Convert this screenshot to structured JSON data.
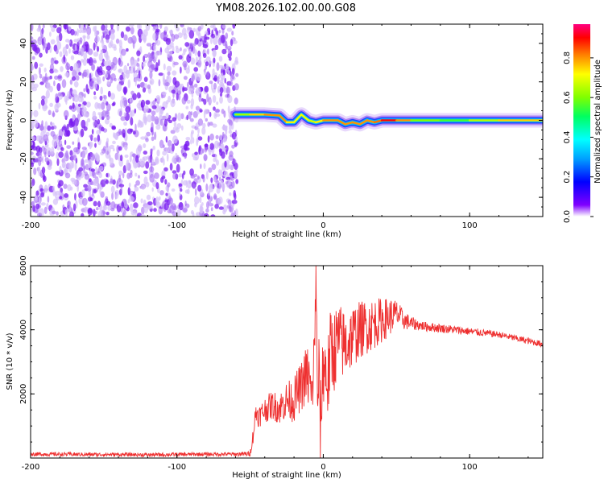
{
  "title": "YM08.2026.102.00.00.G08",
  "chart_data": [
    {
      "type": "heatmap",
      "title": "YM08.2026.102.00.00.G08",
      "xlabel": "Height of straight line (km)",
      "ylabel": "Frequency (Hz)",
      "xlim": [
        -200,
        150
      ],
      "ylim": [
        -50,
        50
      ],
      "x_ticks": [
        "-200",
        "-100",
        "0",
        "100"
      ],
      "y_ticks": [
        "40",
        "20",
        "0",
        "-20",
        "-40"
      ],
      "colorbar": {
        "label": "Normalized spectral amplitude",
        "range": [
          0,
          0.97
        ],
        "ticks": [
          "0.0",
          "0.2",
          "0.4",
          "0.6",
          "0.8"
        ]
      },
      "noise_region": {
        "x_from": -200,
        "x_to": -60
      },
      "ridge": {
        "x": [
          -60,
          -50,
          -40,
          -30,
          -25,
          -20,
          -15,
          -10,
          -5,
          0,
          10,
          15,
          20,
          25,
          30,
          35,
          40,
          50,
          60,
          80,
          100,
          120,
          150
        ],
        "frequency": [
          3,
          3,
          3,
          2.5,
          -1,
          -1,
          3,
          0,
          -1,
          0,
          0,
          -2,
          -1,
          -2,
          0,
          -1,
          0,
          0,
          0,
          0,
          0,
          0,
          0
        ],
        "amplitude": [
          0.55,
          0.75,
          0.8,
          0.85,
          0.8,
          0.7,
          0.75,
          0.7,
          0.7,
          0.8,
          0.85,
          0.8,
          0.85,
          0.8,
          0.85,
          0.8,
          0.9,
          0.95,
          0.7,
          0.55,
          0.6,
          0.75,
          0.8
        ]
      }
    },
    {
      "type": "line",
      "xlabel": "Height of straight line (km)",
      "ylabel": "SNR (10 * v/v)",
      "xlim": [
        -200,
        150
      ],
      "ylim": [
        0,
        6000
      ],
      "x_ticks": [
        "-200",
        "-100",
        "0",
        "100"
      ],
      "y_ticks": [
        "6000",
        "4000",
        "2000"
      ],
      "series": [
        {
          "color": "#ee3030",
          "x": [
            -200,
            -180,
            -160,
            -140,
            -120,
            -100,
            -80,
            -60,
            -50,
            -48,
            -46,
            -44,
            -40,
            -35,
            -30,
            -25,
            -20,
            -18,
            -15,
            -12,
            -10,
            -8,
            -6,
            -5,
            -4,
            -3,
            -2,
            0,
            3,
            5,
            8,
            10,
            15,
            20,
            25,
            30,
            35,
            40,
            45,
            50,
            55,
            60,
            65,
            70,
            80,
            90,
            100,
            110,
            120,
            130,
            140,
            150
          ],
          "y": [
            120,
            120,
            110,
            110,
            100,
            110,
            120,
            120,
            130,
            700,
            1450,
            1300,
            1500,
            1650,
            1550,
            1800,
            1800,
            2050,
            2200,
            2600,
            2500,
            1800,
            3300,
            6000,
            1400,
            2800,
            900,
            3000,
            2400,
            3300,
            3400,
            3700,
            3500,
            3800,
            4000,
            4100,
            4200,
            4300,
            4400,
            4500,
            4300,
            4200,
            4150,
            4100,
            4050,
            4000,
            3950,
            3900,
            3850,
            3750,
            3650,
            3550
          ],
          "amplitude": [
            60,
            60,
            60,
            60,
            60,
            60,
            60,
            60,
            80,
            250,
            350,
            350,
            400,
            450,
            500,
            600,
            700,
            700,
            800,
            900,
            1100,
            900,
            1100,
            1200,
            900,
            1100,
            1300,
            1300,
            1400,
            1400,
            1300,
            1200,
            1100,
            1000,
            900,
            850,
            800,
            700,
            600,
            450,
            300,
            220,
            160,
            150,
            140,
            130,
            120,
            110,
            100,
            100,
            100,
            100
          ]
        }
      ]
    }
  ],
  "colors": {
    "noise": "#8a2be2",
    "line": "#ee3030",
    "colormap": [
      "#ffffff",
      "#d8b8f8",
      "#8000ff",
      "#0000ff",
      "#00a0ff",
      "#00ffff",
      "#00ff60",
      "#80ff00",
      "#ffff00",
      "#ff8000",
      "#ff0000",
      "#ff0080"
    ]
  }
}
